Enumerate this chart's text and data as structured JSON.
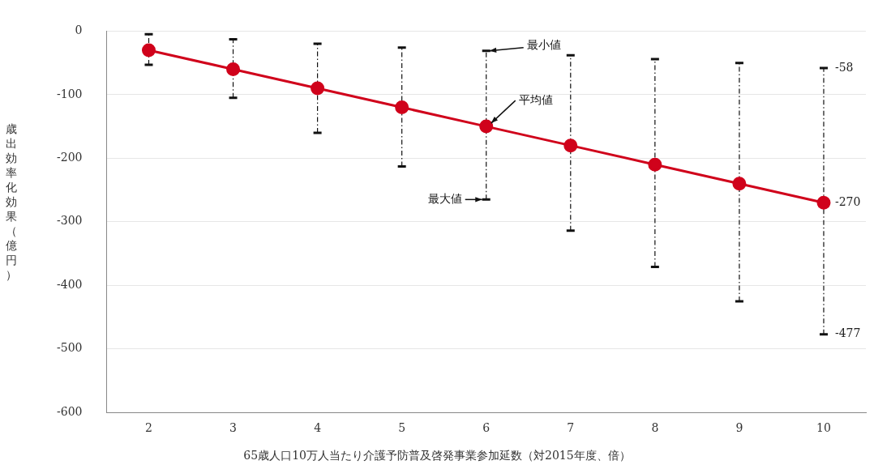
{
  "chart_data": {
    "type": "line",
    "xlabel": "65歳人口10万人当たり介護予防普及啓発事業参加延数（対2015年度、倍）",
    "ylabel": "歳出効率化効果（億円）",
    "categories": [
      "2",
      "3",
      "4",
      "5",
      "6",
      "7",
      "8",
      "9",
      "10"
    ],
    "series": [
      {
        "color": "#d0021b",
        "values": [
          -30,
          -60,
          -90,
          -120,
          -150,
          -180,
          -210,
          -240,
          -270
        ],
        "errors": [
          [
            -53,
            -5
          ],
          [
            -105,
            -13
          ],
          [
            -160,
            -20
          ],
          [
            -213,
            -26
          ],
          [
            -265,
            -31
          ],
          [
            -314,
            -38
          ],
          [
            -371,
            -44
          ],
          [
            -425,
            -50
          ],
          [
            -477,
            -58
          ]
        ]
      }
    ],
    "ylim": [
      -600,
      0
    ],
    "yticks": [
      -600,
      -500,
      -400,
      -300,
      -200,
      -100,
      0
    ],
    "grid": "y",
    "legend": false,
    "marker": "circle",
    "line_style": "solid",
    "annotations": [
      {
        "text": "最小値",
        "x": "6",
        "y": -31
      },
      {
        "text": "平均値",
        "x": "6",
        "y": -150
      },
      {
        "text": "最大値",
        "x": "6",
        "y": -265
      },
      {
        "text": "-58",
        "x": "10",
        "y": -58
      },
      {
        "text": "-270",
        "x": "10",
        "y": -270
      },
      {
        "text": "-477",
        "x": "10",
        "y": -477
      }
    ]
  }
}
